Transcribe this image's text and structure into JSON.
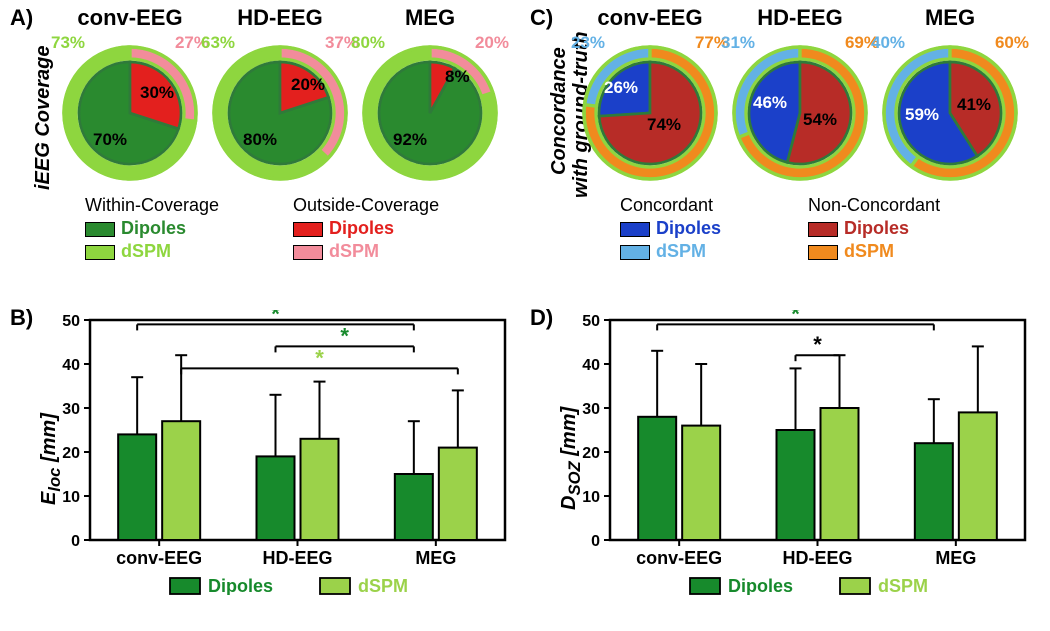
{
  "panelA": {
    "label": "A)",
    "label_fontsize": 22,
    "vlabel": "iEEG Coverage",
    "vlabel_fontsize": 20,
    "col_titles": [
      "conv-EEG",
      "HD-EEG",
      "MEG"
    ],
    "col_title_fontsize": 22,
    "col_title_color": "#000000",
    "donut_border": "#8ed63f",
    "inner_border": "#2f7a3a",
    "donuts": [
      {
        "outer_within": 73,
        "outer_outside": 27,
        "inner_within": 70,
        "inner_outside": 30,
        "outer_within_color": "#8ed63f",
        "outer_outside_color": "#f28c9b",
        "inner_within_color": "#2a8a2f",
        "inner_outside_color": "#e3201e",
        "pct_top_left": "73%",
        "pct_top_right": "27%",
        "pct_inner_main": "70%",
        "pct_inner_other": "30%"
      },
      {
        "outer_within": 63,
        "outer_outside": 37,
        "inner_within": 80,
        "inner_outside": 20,
        "outer_within_color": "#8ed63f",
        "outer_outside_color": "#f28c9b",
        "inner_within_color": "#2a8a2f",
        "inner_outside_color": "#e3201e",
        "pct_top_left": "63%",
        "pct_top_right": "37%",
        "pct_inner_main": "80%",
        "pct_inner_other": "20%"
      },
      {
        "outer_within": 80,
        "outer_outside": 20,
        "inner_within": 92,
        "inner_outside": 8,
        "outer_within_color": "#8ed63f",
        "outer_outside_color": "#f28c9b",
        "inner_within_color": "#2a8a2f",
        "inner_outside_color": "#e3201e",
        "pct_top_left": "80%",
        "pct_top_right": "20%",
        "pct_inner_main": "92%",
        "pct_inner_other": "8%"
      }
    ],
    "legend": {
      "header1": "Within-Coverage",
      "header2": "Outside-Coverage",
      "header_fontsize": 18,
      "rows": [
        {
          "swatch1": "#2a8a2f",
          "label1": "Dipoles",
          "label1_color": "#2a8a2f",
          "swatch2": "#e3201e",
          "label2": "Dipoles",
          "label2_color": "#e3201e"
        },
        {
          "swatch1": "#8ed63f",
          "label1": "dSPM",
          "label1_color": "#8ed63f",
          "swatch2": "#f28c9b",
          "label2": "dSPM",
          "label2_color": "#f28c9b"
        }
      ]
    }
  },
  "panelC": {
    "label": "C)",
    "label_fontsize": 22,
    "vlabel_line1": "Concordance",
    "vlabel_line2": "with ground-truth",
    "vlabel_fontsize": 20,
    "col_titles": [
      "conv-EEG",
      "HD-EEG",
      "MEG"
    ],
    "col_title_fontsize": 22,
    "col_title_color": "#000000",
    "donut_border": "#8ed63f",
    "inner_border": "#2f7a3a",
    "donuts": [
      {
        "outer_conc": 23,
        "outer_nonc": 77,
        "inner_conc": 26,
        "inner_nonc": 74,
        "outer_conc_color": "#63b1e5",
        "outer_nonc_color": "#f08a1e",
        "inner_conc_color": "#1b40c9",
        "inner_nonc_color": "#b72c27",
        "pct_top_left": "23%",
        "pct_top_right": "77%",
        "pct_inner_main": "74%",
        "pct_inner_other": "26%"
      },
      {
        "outer_conc": 31,
        "outer_nonc": 69,
        "inner_conc": 46,
        "inner_nonc": 54,
        "outer_conc_color": "#63b1e5",
        "outer_nonc_color": "#f08a1e",
        "inner_conc_color": "#1b40c9",
        "inner_nonc_color": "#b72c27",
        "pct_top_left": "31%",
        "pct_top_right": "69%",
        "pct_inner_main": "54%",
        "pct_inner_other": "46%"
      },
      {
        "outer_conc": 40,
        "outer_nonc": 60,
        "inner_conc": 59,
        "inner_nonc": 41,
        "outer_conc_color": "#63b1e5",
        "outer_nonc_color": "#f08a1e",
        "inner_conc_color": "#1b40c9",
        "inner_nonc_color": "#b72c27",
        "pct_top_left": "40%",
        "pct_top_right": "60%",
        "pct_inner_main": "41%",
        "pct_inner_other": "59%"
      }
    ],
    "legend": {
      "header1": "Concordant",
      "header2": "Non-Concordant",
      "header_fontsize": 18,
      "rows": [
        {
          "swatch1": "#1b40c9",
          "label1": "Dipoles",
          "label1_color": "#1b40c9",
          "swatch2": "#b72c27",
          "label2": "Dipoles",
          "label2_color": "#b72c27"
        },
        {
          "swatch1": "#63b1e5",
          "label1": "dSPM",
          "label1_color": "#63b1e5",
          "swatch2": "#f08a1e",
          "label2": "dSPM",
          "label2_color": "#f08a1e"
        }
      ]
    }
  },
  "panelB": {
    "label": "B)",
    "y_label": "E_loc [mm]",
    "y_label_plain1": "E",
    "y_label_sub": "loc",
    "y_label_plain2": " [mm]",
    "ylim": [
      0,
      50
    ],
    "yticks": [
      0,
      10,
      20,
      30,
      40,
      50
    ],
    "categories": [
      "conv-EEG",
      "HD-EEG",
      "MEG"
    ],
    "bars": [
      {
        "dip": 24,
        "dip_err": 13,
        "dspm": 27,
        "dspm_err": 15
      },
      {
        "dip": 19,
        "dip_err": 14,
        "dspm": 23,
        "dspm_err": 13
      },
      {
        "dip": 15,
        "dip_err": 12,
        "dspm": 21,
        "dspm_err": 13
      }
    ],
    "bar_dip_color": "#178a2c",
    "bar_dspm_color": "#9bd24a",
    "bar_border": "#000000",
    "axis_color": "#000000",
    "tick_fontsize": 16,
    "cat_fontsize": 18,
    "sig_lines": [
      {
        "from_group": 0,
        "from_bar": "dip",
        "to_group": 2,
        "to_bar": "dip",
        "y": 49,
        "star_color": "#178a2c"
      },
      {
        "from_group": 1,
        "from_bar": "dip",
        "to_group": 2,
        "to_bar": "dip",
        "y": 44,
        "star_color": "#178a2c"
      },
      {
        "from_group": 0,
        "from_bar": "dspm",
        "to_group": 2,
        "to_bar": "dspm",
        "y": 39,
        "star_color": "#9bd24a"
      }
    ],
    "legend": {
      "items": [
        {
          "swatch": "#178a2c",
          "label": "Dipoles",
          "label_color": "#178a2c"
        },
        {
          "swatch": "#9bd24a",
          "label": "dSPM",
          "label_color": "#9bd24a"
        }
      ]
    }
  },
  "panelD": {
    "label": "D)",
    "y_label_plain1": "D",
    "y_label_sub": "SOZ",
    "y_label_plain2": " [mm]",
    "ylim": [
      0,
      50
    ],
    "yticks": [
      0,
      10,
      20,
      30,
      40,
      50
    ],
    "categories": [
      "conv-EEG",
      "HD-EEG",
      "MEG"
    ],
    "bars": [
      {
        "dip": 28,
        "dip_err": 15,
        "dspm": 26,
        "dspm_err": 14
      },
      {
        "dip": 25,
        "dip_err": 14,
        "dspm": 30,
        "dspm_err": 12
      },
      {
        "dip": 22,
        "dip_err": 10,
        "dspm": 29,
        "dspm_err": 15
      }
    ],
    "bar_dip_color": "#178a2c",
    "bar_dspm_color": "#9bd24a",
    "bar_border": "#000000",
    "axis_color": "#000000",
    "tick_fontsize": 16,
    "cat_fontsize": 18,
    "sig_lines": [
      {
        "from_group": 0,
        "from_bar": "dip",
        "to_group": 2,
        "to_bar": "dip",
        "y": 49,
        "star_color": "#178a2c"
      },
      {
        "from_group": 1,
        "from_bar": "dip",
        "to_group": 1,
        "to_bar": "dspm",
        "y": 42,
        "star_color": "#000000"
      }
    ],
    "legend": {
      "items": [
        {
          "swatch": "#178a2c",
          "label": "Dipoles",
          "label_color": "#178a2c"
        },
        {
          "swatch": "#9bd24a",
          "label": "dSPM",
          "label_color": "#9bd24a"
        }
      ]
    }
  }
}
